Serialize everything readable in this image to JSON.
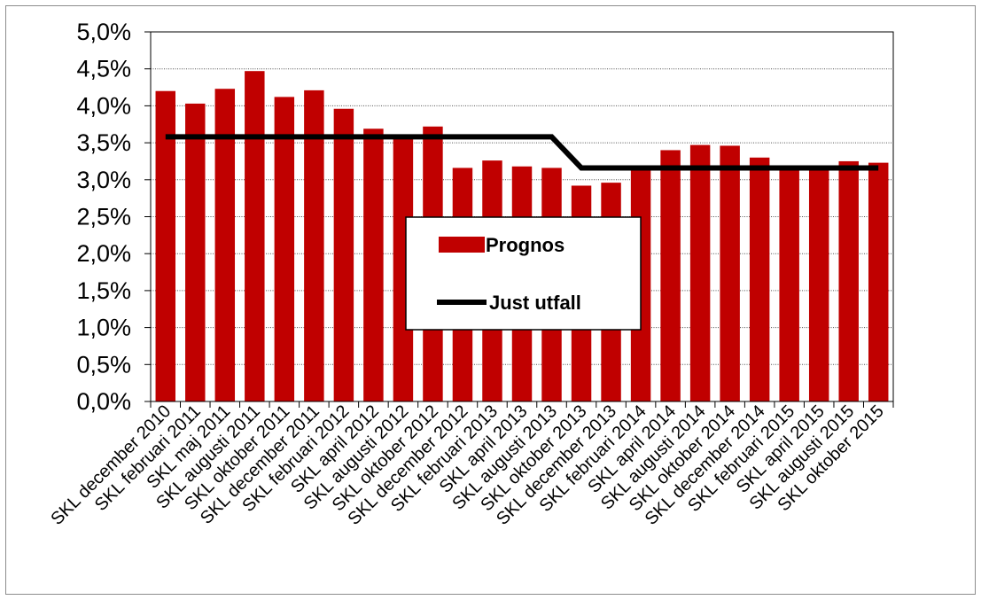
{
  "chart_data": {
    "type": "bar",
    "title": "",
    "xlabel": "",
    "ylabel": "",
    "ylim": [
      0,
      5
    ],
    "y_tick_labels": [
      "0,0%",
      "0,5%",
      "1,0%",
      "1,5%",
      "2,0%",
      "2,5%",
      "3,0%",
      "3,5%",
      "4,0%",
      "4,5%",
      "5,0%"
    ],
    "grid": "horizontal dotted",
    "legend_position": "center",
    "categories": [
      "SKL december 2010",
      "SKL februari 2011",
      "SKL maj 2011",
      "SKL augusti 2011",
      "SKL oktober 2011",
      "SKL december 2011",
      "SKL februari 2012",
      "SKL april 2012",
      "SKL augusti 2012",
      "SKL oktober 2012",
      "SKL december 2012",
      "SKL februari 2013",
      "SKL april 2013",
      "SKL augusti 2013",
      "SKL oktober 2013",
      "SKL december 2013",
      "SKL februari 2014",
      "SKL april 2014",
      "SKL augusti 2014",
      "SKL oktober 2014",
      "SKL december 2014",
      "SKL februari 2015",
      "SKL april 2015",
      "SKL augusti 2015",
      "SKL oktober 2015"
    ],
    "series": [
      {
        "name": "Prognos",
        "type": "bar",
        "color": "#c00000",
        "values": [
          4.2,
          4.03,
          4.23,
          4.47,
          4.12,
          4.21,
          3.96,
          3.69,
          3.6,
          3.72,
          3.16,
          3.26,
          3.18,
          3.16,
          2.92,
          2.96,
          3.15,
          3.4,
          3.47,
          3.46,
          3.3,
          3.16,
          3.16,
          3.25,
          3.23
        ]
      },
      {
        "name": "Just utfall",
        "type": "line",
        "color": "#000000",
        "values": [
          3.58,
          3.58,
          3.58,
          3.58,
          3.58,
          3.58,
          3.58,
          3.58,
          3.58,
          3.58,
          3.58,
          3.58,
          3.58,
          3.58,
          3.16,
          3.16,
          3.16,
          3.16,
          3.16,
          3.16,
          3.16,
          3.16,
          3.16,
          3.16,
          3.16
        ]
      }
    ]
  }
}
